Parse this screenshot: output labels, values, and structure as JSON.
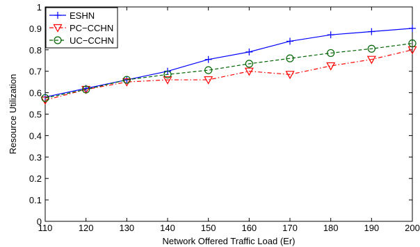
{
  "chart_data": {
    "type": "line",
    "xlabel": "Network Offered Traffic Load (Er)",
    "ylabel": "Resource Utilization",
    "xlim": [
      110,
      200
    ],
    "ylim": [
      0,
      1
    ],
    "xticks": [
      "110",
      "120",
      "130",
      "140",
      "150",
      "160",
      "170",
      "180",
      "190",
      "200"
    ],
    "yticks": [
      "0",
      "0.1",
      "0.2",
      "0.3",
      "0.4",
      "0.5",
      "0.6",
      "0.7",
      "0.8",
      "0.9",
      "1"
    ],
    "legend_position": "top-left",
    "grid": false,
    "x": [
      110,
      120,
      130,
      140,
      150,
      160,
      170,
      180,
      190,
      200
    ],
    "series": [
      {
        "name": "ESHN",
        "color": "#0000ff",
        "line_style": "solid",
        "marker": "plus",
        "values": [
          0.58,
          0.62,
          0.66,
          0.7,
          0.755,
          0.79,
          0.84,
          0.87,
          0.885,
          0.9
        ]
      },
      {
        "name": "PC−CCHN",
        "color": "#ff0000",
        "line_style": "dashdot",
        "marker": "triangle-down",
        "values": [
          0.565,
          0.615,
          0.65,
          0.66,
          0.66,
          0.7,
          0.685,
          0.725,
          0.755,
          0.8
        ]
      },
      {
        "name": "UC−CCHN",
        "color": "#006400",
        "line_style": "dashed",
        "marker": "circle",
        "values": [
          0.575,
          0.615,
          0.66,
          0.685,
          0.705,
          0.735,
          0.76,
          0.785,
          0.805,
          0.83
        ]
      }
    ]
  }
}
